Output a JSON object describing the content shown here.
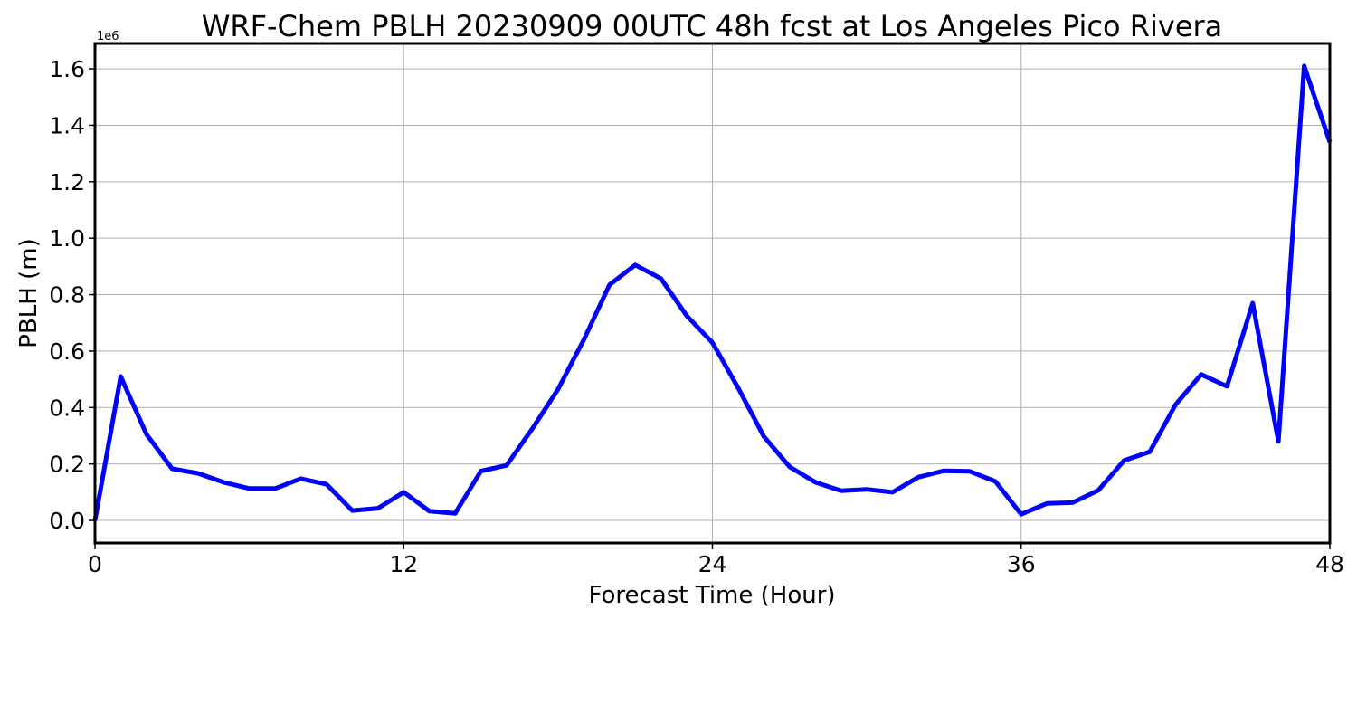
{
  "chart_data": {
    "type": "line",
    "title": "WRF-Chem PBLH  20230909 00UTC 48h fcst at Los Angeles Pico Rivera",
    "xlabel": "Forecast Time (Hour)",
    "ylabel": "PBLH  (m)",
    "y_offset_label": "1e6",
    "y_scale": 1000000,
    "xlim": [
      0,
      48
    ],
    "ylim": [
      -80000,
      1690000
    ],
    "x_ticks": [
      0,
      12,
      24,
      36,
      48
    ],
    "x_tick_labels": [
      "0",
      "12",
      "24",
      "36",
      "48"
    ],
    "y_ticks": [
      0,
      200000,
      400000,
      600000,
      800000,
      1000000,
      1200000,
      1400000,
      1600000
    ],
    "y_tick_labels": [
      "0.0",
      "0.2",
      "0.4",
      "0.6",
      "0.8",
      "1.0",
      "1.2",
      "1.4",
      "1.6"
    ],
    "grid": true,
    "series": [
      {
        "color": "#0000ff",
        "x": [
          0,
          1,
          2,
          3,
          4,
          5,
          6,
          7,
          8,
          9,
          10,
          11,
          12,
          13,
          14,
          15,
          16,
          17,
          18,
          19,
          20,
          21,
          22,
          23,
          24,
          25,
          26,
          27,
          28,
          29,
          30,
          31,
          32,
          33,
          34,
          35,
          36,
          37,
          38,
          39,
          40,
          41,
          42,
          43,
          44,
          45,
          46,
          47,
          48
        ],
        "values": [
          0,
          510000,
          305000,
          183000,
          167000,
          135000,
          113000,
          113000,
          148000,
          128000,
          35000,
          43000,
          100000,
          33000,
          25000,
          175000,
          195000,
          325000,
          465000,
          640000,
          835000,
          905000,
          857000,
          725000,
          630000,
          470000,
          297000,
          190000,
          135000,
          105000,
          110000,
          100000,
          153000,
          176000,
          174000,
          138000,
          22000,
          60000,
          63000,
          107000,
          212000,
          243000,
          410000,
          517000,
          475000,
          770000,
          280000,
          1610000,
          1340000
        ]
      }
    ]
  }
}
